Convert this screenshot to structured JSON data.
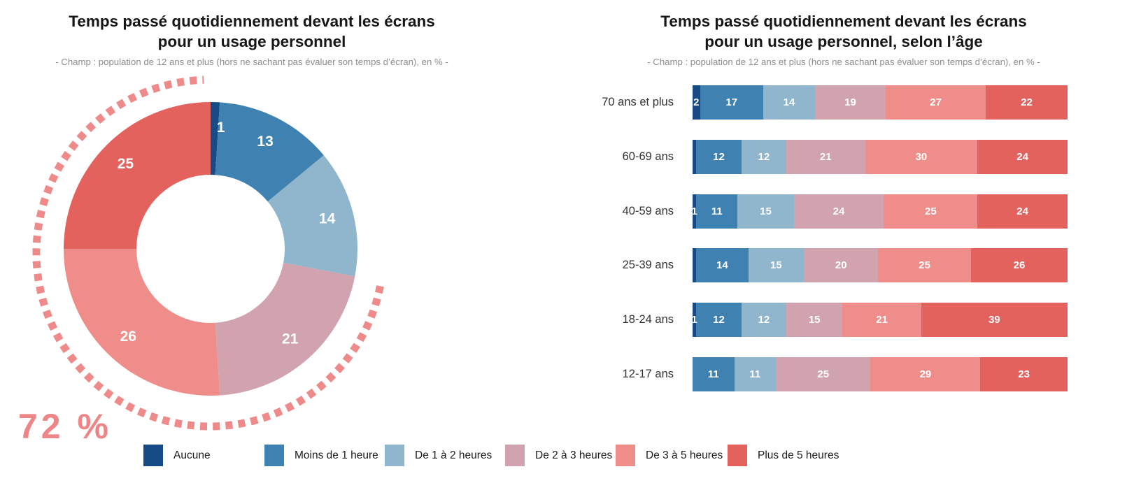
{
  "palette": {
    "annotation_pink": "#ee8587",
    "dotted_arc_pink": "#ef8a8a",
    "title_color": "#161616",
    "subtitle_color": "#8d8d8d",
    "bar_value_text": "#ffffff"
  },
  "legend": {
    "items": [
      {
        "label": "Aucune",
        "color": "#164b86"
      },
      {
        "label": "Moins de 1 heure",
        "color": "#3f82b1"
      },
      {
        "label": "De 1 à 2 heures",
        "color": "#8fb6cc"
      },
      {
        "label": "De 2 à 3 heures",
        "color": "#d1a3ae"
      },
      {
        "label": "De 3 à 5 heures",
        "color": "#ef8d8a"
      },
      {
        "label": "Plus de 5 heures",
        "color": "#e4625e"
      }
    ]
  },
  "chart_data": [
    {
      "type": "pie",
      "subtype": "donut",
      "title_line1": "Temps passé quotidiennement devant les écrans",
      "title_line2": "pour un usage personnel",
      "subtitle": "- Champ : population de 12 ans et plus (hors ne sachant pas évaluer son temps d’écran), en % -",
      "categories": [
        "Aucune",
        "Moins de 1 heure",
        "De 1 à 2 heures",
        "De 2 à 3 heures",
        "De 3 à 5 heures",
        "Plus de 5 heures"
      ],
      "values": [
        1,
        13,
        14,
        21,
        26,
        25
      ],
      "value_labels": [
        "1",
        "13",
        "14",
        "21",
        "26",
        "25"
      ],
      "colors": [
        "#164b86",
        "#3f82b1",
        "#8fb6cc",
        "#d1a3ae",
        "#ef8d8a",
        "#e4625e"
      ],
      "start_angle": "top",
      "direction": "clockwise",
      "legend_position": "bottom",
      "annotation": {
        "text": "72 %",
        "value_pct": 72,
        "covers": [
          "De 2 à 3 heures",
          "De 3 à 5 heures",
          "Plus de 5 heures"
        ],
        "style": "dotted-arc"
      }
    },
    {
      "type": "bar",
      "subtype": "stacked-horizontal",
      "title_line1": "Temps passé quotidiennement devant les écrans",
      "title_line2": "pour un usage personnel, selon l’âge",
      "subtitle": "- Champ : population de 12 ans et plus (hors ne sachant pas évaluer son temps d’écran), en % -",
      "series": [
        "Aucune",
        "Moins de 1 heure",
        "De 1 à 2 heures",
        "De 2 à 3 heures",
        "De 3 à 5 heures",
        "Plus de 5 heures"
      ],
      "colors": [
        "#164b86",
        "#3f82b1",
        "#8fb6cc",
        "#d1a3ae",
        "#ef8d8a",
        "#e4625e"
      ],
      "xlim": [
        0,
        100
      ],
      "rows": [
        {
          "label": "70 ans et plus",
          "values": [
            2,
            17,
            14,
            19,
            27,
            22
          ],
          "value_labels": [
            "2",
            "17",
            "14",
            "19",
            "27",
            "22"
          ]
        },
        {
          "label": "60-69 ans",
          "values": [
            1,
            12,
            12,
            21,
            30,
            24
          ],
          "value_labels": [
            "",
            "12",
            "12",
            "21",
            "30",
            "24"
          ]
        },
        {
          "label": "40-59 ans",
          "values": [
            1,
            11,
            15,
            24,
            25,
            24
          ],
          "value_labels": [
            "1",
            "11",
            "15",
            "24",
            "25",
            "24"
          ]
        },
        {
          "label": "25-39 ans",
          "values": [
            1,
            14,
            15,
            20,
            25,
            26
          ],
          "value_labels": [
            "",
            "14",
            "15",
            "20",
            "25",
            "26"
          ]
        },
        {
          "label": "18-24 ans",
          "values": [
            1,
            12,
            12,
            15,
            21,
            39
          ],
          "value_labels": [
            "1",
            "12",
            "12",
            "15",
            "21",
            "39"
          ]
        },
        {
          "label": "12-17 ans",
          "values": [
            0,
            11,
            11,
            25,
            29,
            23
          ],
          "value_labels": [
            "",
            "11",
            "11",
            "25",
            "29",
            "23"
          ]
        }
      ]
    }
  ]
}
